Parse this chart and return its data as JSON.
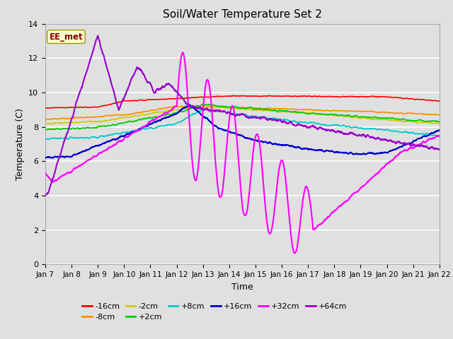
{
  "title": "Soil/Water Temperature Set 2",
  "xlabel": "Time",
  "ylabel": "Temperature (C)",
  "ylim": [
    0,
    14
  ],
  "xlim": [
    0,
    15
  ],
  "x_tick_labels": [
    "Jan 7",
    "Jan 8",
    "Jan 9",
    "Jan 10",
    "Jan 11",
    "Jan 12",
    "Jan 13",
    "Jan 14",
    "Jan 15",
    "Jan 16",
    "Jan 17",
    "Jan 18",
    "Jan 19",
    "Jan 20",
    "Jan 21",
    "Jan 22"
  ],
  "yticks": [
    0,
    2,
    4,
    6,
    8,
    10,
    12,
    14
  ],
  "bg_color": "#e0e0e0",
  "grid_color": "#ffffff",
  "annotation_text": "EE_met",
  "annotation_color": "#8b0000",
  "annotation_bg": "#ffffcc",
  "series": {
    "-16cm": {
      "color": "#ff0000",
      "linewidth": 1.2
    },
    "-8cm": {
      "color": "#ff8c00",
      "linewidth": 1.2
    },
    "-2cm": {
      "color": "#cccc00",
      "linewidth": 1.2
    },
    "+2cm": {
      "color": "#00cc00",
      "linewidth": 1.2
    },
    "+8cm": {
      "color": "#00cccc",
      "linewidth": 1.2
    },
    "+16cm": {
      "color": "#0000cc",
      "linewidth": 1.5
    },
    "+32cm": {
      "color": "#ff00ff",
      "linewidth": 1.5
    },
    "+64cm": {
      "color": "#9900cc",
      "linewidth": 1.5
    }
  }
}
